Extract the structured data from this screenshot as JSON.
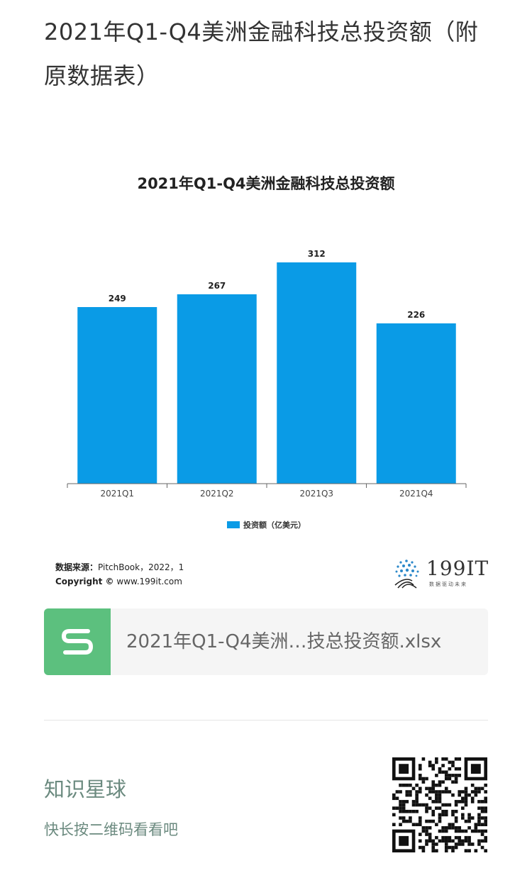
{
  "post": {
    "title": "2021年Q1-Q4美洲金融科技总投资额（附原数据表）"
  },
  "chart_data": {
    "type": "bar",
    "title": "2021年Q1-Q4美洲金融科技总投资额",
    "categories": [
      "2021Q1",
      "2021Q2",
      "2021Q3",
      "2021Q4"
    ],
    "series": [
      {
        "name": "投资额（亿美元）",
        "values": [
          249,
          267,
          312,
          226
        ],
        "color": "#0a9be6"
      }
    ],
    "ylim": [
      0,
      340
    ],
    "grid": false,
    "legend": "bottom"
  },
  "source": {
    "label": "数据来源：",
    "text": "PitchBook，2022，1",
    "copyright_label": "Copyright ©",
    "copyright_text": "www.199it.com"
  },
  "logo": {
    "name": "199IT",
    "slogan": "数据驱动未来"
  },
  "attachment": {
    "filename": "2021年Q1-Q4美洲…技总投资额.xlsx",
    "icon": "spreadsheet-s-icon",
    "icon_color": "#5cc07e"
  },
  "planet": {
    "title": "知识星球",
    "subtitle": "快长按二维码看看吧",
    "qr_icon": "qr-code-icon"
  }
}
